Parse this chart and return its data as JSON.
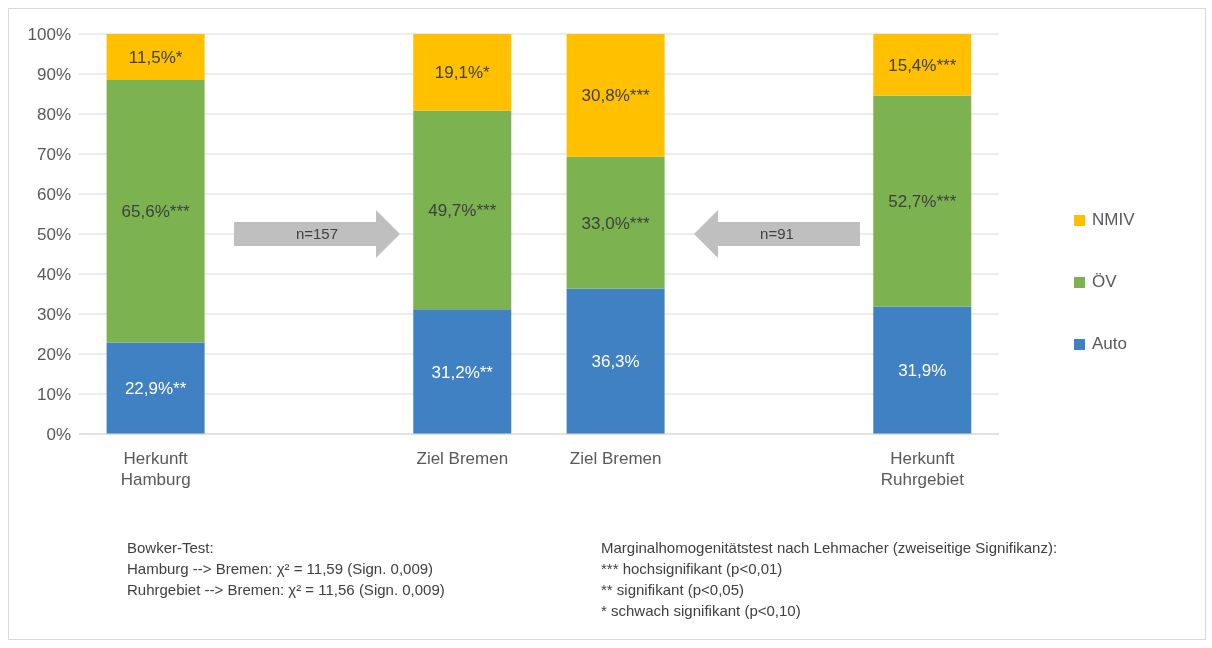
{
  "chart_data": {
    "type": "bar",
    "stacked": true,
    "categories": [
      "Herkunft Hamburg",
      null,
      "Ziel Bremen",
      "Ziel Bremen",
      null,
      "Herkunft Ruhrgebiet"
    ],
    "series": [
      {
        "name": "Auto",
        "color": "#3f81c2",
        "values": [
          22.9,
          null,
          31.2,
          36.3,
          null,
          31.9
        ],
        "value_labels": [
          "22,9%**",
          null,
          "31,2%**",
          "36,3%",
          null,
          "31,9%"
        ]
      },
      {
        "name": "ÖV",
        "color": "#7cb24f",
        "values": [
          65.6,
          null,
          49.7,
          33.0,
          null,
          52.7
        ],
        "value_labels": [
          "65,6%***",
          null,
          "49,7%***",
          "33,0%***",
          null,
          "52,7%***"
        ]
      },
      {
        "name": "NMIV",
        "color": "#ffc000",
        "values": [
          11.5,
          null,
          19.1,
          30.8,
          null,
          15.4
        ],
        "value_labels": [
          "11,5%*",
          null,
          "19,1%*",
          "30,8%***",
          null,
          "15,4%***"
        ]
      }
    ],
    "ylim": [
      0,
      100
    ],
    "yticks": [
      {
        "value": 0,
        "label": "0%"
      },
      {
        "value": 10,
        "label": "10%"
      },
      {
        "value": 20,
        "label": "20%"
      },
      {
        "value": 30,
        "label": "30%"
      },
      {
        "value": 40,
        "label": "40%"
      },
      {
        "value": 50,
        "label": "50%"
      },
      {
        "value": 60,
        "label": "60%"
      },
      {
        "value": 70,
        "label": "70%"
      },
      {
        "value": 80,
        "label": "80%"
      },
      {
        "value": 90,
        "label": "90%"
      },
      {
        "value": 100,
        "label": "100%"
      }
    ],
    "grid": "y",
    "legend": "right",
    "annotations": [
      "n=157",
      "n=91",
      "Bowker-Test:",
      "Hamburg --> Bremen: χ² = 11,59 (Sign. 0,009)",
      "Ruhrgebiet --> Bremen: χ² = 11,56 (Sign. 0,009)",
      "Marginalhomogenitätstest nach Lehmacher (zweiseitige Signifikanz):",
      "*** hochsignifikant (p<0,01)",
      "** signifikant (p<0,05)",
      "* schwach signifikant (p<0,10)"
    ]
  }
}
